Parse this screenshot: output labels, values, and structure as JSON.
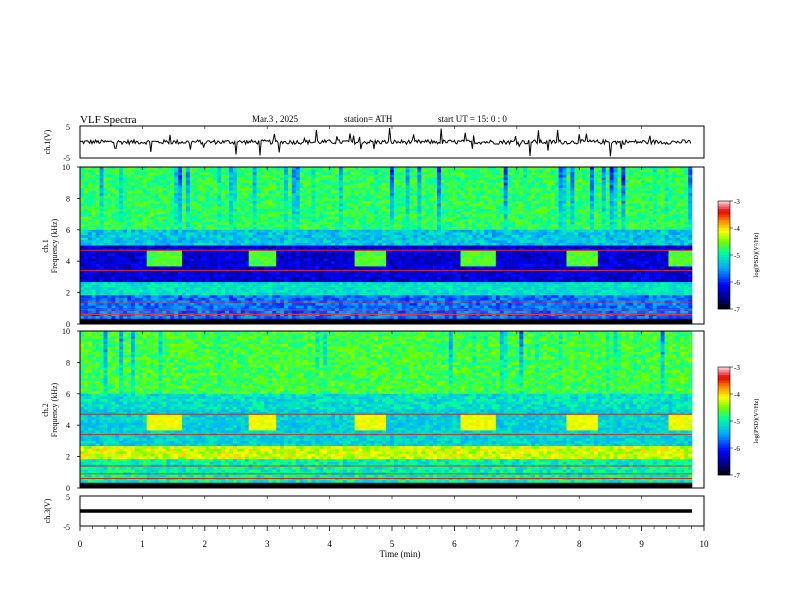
{
  "header": {
    "title": "VLF  Spectra",
    "date": "Mar.3   , 2025",
    "station": "station= ATH",
    "start_ut": "start  UT  =     15: 0   : 0"
  },
  "chart_data": [
    {
      "type": "line",
      "panel": "ch1-waveform",
      "ylabel": "ch.1(V)",
      "ylim": [
        -5,
        5
      ],
      "yticks": [
        "5",
        "-5"
      ],
      "series": [
        {
          "values_note_free": true,
          "mean": 0,
          "noise_amplitude": 1.0
        }
      ]
    },
    {
      "type": "heatmap",
      "panel": "ch1-spectrogram",
      "ylabel": "ch.1\nFrequency  (kHz)",
      "ylabel_lines": [
        "ch.1",
        "Frequency  (kHz)"
      ],
      "ylim": [
        0,
        10
      ],
      "yticks": [
        "10",
        "8",
        "6",
        "4",
        "2",
        "0"
      ],
      "colorbar": {
        "label": "log(PSD)(V²/Hz)",
        "ticks": [
          "-3",
          "-4",
          "-5",
          "-6",
          "-7"
        ],
        "range": [
          -7,
          -3
        ]
      },
      "transmitter_bursts_min": [
        [
          1.08,
          1.64
        ],
        [
          2.72,
          3.16
        ],
        [
          4.4,
          4.92
        ],
        [
          6.12,
          6.64
        ],
        [
          7.8,
          8.32
        ],
        [
          9.44,
          9.8
        ]
      ],
      "burst_band_khz": [
        3.6,
        4.6
      ]
    },
    {
      "type": "heatmap",
      "panel": "ch2-spectrogram",
      "ylabel_lines": [
        "ch.2",
        "Frequency  (kHz)"
      ],
      "ylim": [
        0,
        10
      ],
      "yticks": [
        "10",
        "8",
        "6",
        "4",
        "2",
        "0"
      ],
      "colorbar": {
        "label": "log(PSD)(V²/Hz)",
        "ticks": [
          "-3",
          "-4",
          "-5",
          "-6",
          "-7"
        ],
        "range": [
          -7,
          -3
        ]
      },
      "transmitter_bursts_min": [
        [
          1.08,
          1.64
        ],
        [
          2.72,
          3.16
        ],
        [
          4.4,
          4.92
        ],
        [
          6.12,
          6.64
        ],
        [
          7.8,
          8.32
        ],
        [
          9.44,
          9.8
        ]
      ],
      "burst_band_khz": [
        3.6,
        4.6
      ]
    },
    {
      "type": "line",
      "panel": "ch3-waveform",
      "ylabel": "ch.3(V)",
      "ylim": [
        -5,
        5
      ],
      "yticks": [
        "5",
        "-5"
      ],
      "series": [
        {
          "constant": -2
        }
      ]
    }
  ],
  "x_axis": {
    "label": "Time  (min)",
    "xlim": [
      0,
      10
    ],
    "ticks": [
      "0",
      "1",
      "2",
      "3",
      "4",
      "5",
      "6",
      "7",
      "8",
      "9",
      "10"
    ]
  }
}
